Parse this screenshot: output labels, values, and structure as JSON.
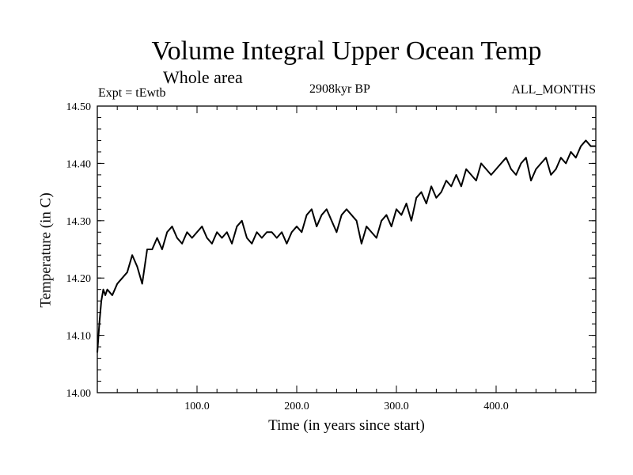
{
  "chart_data": {
    "type": "line",
    "title": "Volume Integral Upper Ocean Temp",
    "subtitle": "Whole area",
    "experiment": "Expt = tEwtb",
    "era": "2908kyr BP",
    "months": "ALL_MONTHS",
    "xlabel": "Time (in years since start)",
    "ylabel": "Temperature (in C)",
    "xlim": [
      0,
      500
    ],
    "ylim": [
      14.0,
      14.5
    ],
    "x_ticks": [
      100,
      200,
      300,
      400
    ],
    "x_tick_labels": [
      "100.0",
      "200.0",
      "300.0",
      "400.0"
    ],
    "y_ticks": [
      14.0,
      14.1,
      14.2,
      14.3,
      14.4,
      14.5
    ],
    "y_tick_labels": [
      "14.00",
      "14.10",
      "14.20",
      "14.30",
      "14.40",
      "14.50"
    ],
    "series": [
      {
        "name": "Volume Integral Upper Ocean Temp",
        "x": [
          0,
          2,
          4,
          6,
          8,
          10,
          15,
          20,
          25,
          30,
          35,
          40,
          45,
          50,
          55,
          60,
          65,
          70,
          75,
          80,
          85,
          90,
          95,
          100,
          105,
          110,
          115,
          120,
          125,
          130,
          135,
          140,
          145,
          150,
          155,
          160,
          165,
          170,
          175,
          180,
          185,
          190,
          195,
          200,
          205,
          210,
          215,
          220,
          225,
          230,
          235,
          240,
          245,
          250,
          255,
          260,
          265,
          270,
          275,
          280,
          285,
          290,
          295,
          300,
          305,
          310,
          315,
          320,
          325,
          330,
          335,
          340,
          345,
          350,
          355,
          360,
          365,
          370,
          375,
          380,
          385,
          390,
          395,
          400,
          405,
          410,
          415,
          420,
          425,
          430,
          435,
          440,
          445,
          450,
          455,
          460,
          465,
          470,
          475,
          480,
          485,
          490,
          495,
          500
        ],
        "values": [
          14.07,
          14.12,
          14.16,
          14.18,
          14.17,
          14.18,
          14.17,
          14.19,
          14.2,
          14.21,
          14.24,
          14.22,
          14.19,
          14.25,
          14.25,
          14.27,
          14.25,
          14.28,
          14.29,
          14.27,
          14.26,
          14.28,
          14.27,
          14.28,
          14.29,
          14.27,
          14.26,
          14.28,
          14.27,
          14.28,
          14.26,
          14.29,
          14.3,
          14.27,
          14.26,
          14.28,
          14.27,
          14.28,
          14.28,
          14.27,
          14.28,
          14.26,
          14.28,
          14.29,
          14.28,
          14.31,
          14.32,
          14.29,
          14.31,
          14.32,
          14.3,
          14.28,
          14.31,
          14.32,
          14.31,
          14.3,
          14.26,
          14.29,
          14.28,
          14.27,
          14.3,
          14.31,
          14.29,
          14.32,
          14.31,
          14.33,
          14.3,
          14.34,
          14.35,
          14.33,
          14.36,
          14.34,
          14.35,
          14.37,
          14.36,
          14.38,
          14.36,
          14.39,
          14.38,
          14.37,
          14.4,
          14.39,
          14.38,
          14.39,
          14.4,
          14.41,
          14.39,
          14.38,
          14.4,
          14.41,
          14.37,
          14.39,
          14.4,
          14.41,
          14.38,
          14.39,
          14.41,
          14.4,
          14.42,
          14.41,
          14.43,
          14.44,
          14.43,
          14.43
        ]
      }
    ]
  }
}
